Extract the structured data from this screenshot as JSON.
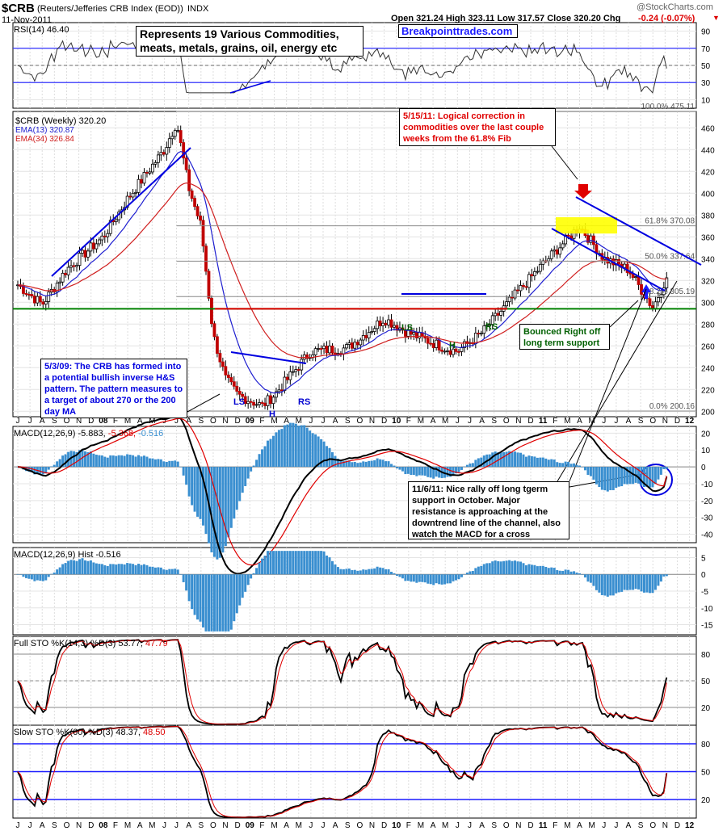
{
  "header": {
    "symbol": "$CRB",
    "name": "(Reuters/Jefferies CRB Index (EOD))",
    "exchange": "INDX",
    "date": "11-Nov-2011",
    "ohlc": "Open 321.24  High 323.11  Low 317.57  Close 320.20  Chg",
    "chg": "-0.24 (-0.07%)",
    "chg_icon": "down-triangle-icon",
    "logo": "@StockCharts.com"
  },
  "colors": {
    "ema13": "#1f1fd0",
    "ema34": "#d01f1f",
    "support": "#008000",
    "neckline": "#e00000",
    "channel": "#0000e0",
    "fib_box": "#ffff00",
    "circle": "#0000e0",
    "hist": "#3a8fd0"
  },
  "notes": {
    "commodities": "Represents 19 Various Commodities, meats, metals, grains, oil, energy etc",
    "site": "Breakpointtrades.com",
    "fib_note": "5/15/11: Logical correction in commodities over the last couple weeks from the 61.8% Fib",
    "support_note": "Bounced Right off long term support",
    "hs_note": "5/3/09: The CRB has formed into a potential bullish inverse H&S pattern.  The pattern measures to a target of about 270 or the 200 day MA",
    "macd_note": "11/6/11: Nice rally off long tgerm support in October.  Major resistance is approaching at the downtrend line of the channel, also watch the MACD for a cross"
  },
  "pattern_labels": {
    "ls1": "LS",
    "h1": "H",
    "rs1": "RS",
    "ls2": "LS",
    "h2": "H",
    "rs2": "RS"
  },
  "panels": {
    "rsi": {
      "label": "RSI(14) 46.40",
      "ticks": [
        "90",
        "70",
        "50",
        "30",
        "10"
      ]
    },
    "price": {
      "label": "$CRB (Weekly) 320.20",
      "ema13": "EMA(13) 320.87",
      "ema34": "EMA(34) 326.84",
      "ticks": [
        "460",
        "440",
        "420",
        "400",
        "380",
        "360",
        "340",
        "320",
        "300",
        "280",
        "260",
        "240",
        "220",
        "200"
      ],
      "fib": {
        "f100": "100.0% 475.11",
        "f618": "61.8% 370.08",
        "f50": "50.0% 337.64",
        "f382": "38.2% 305.19",
        "f0": "0.0% 200.16"
      }
    },
    "macd": {
      "label": "MACD(12,26,9) -5.883,",
      "v2": "-5.368,",
      "v3": "-0.516",
      "ticks": [
        "20",
        "10",
        "0",
        "-10",
        "-20",
        "-30",
        "-40"
      ]
    },
    "hist": {
      "label": "MACD(12,26,9) Hist -0.516",
      "ticks": [
        "5",
        "0",
        "-5",
        "-10",
        "-15"
      ]
    },
    "fsto": {
      "label": "Full STO %K(14,3) %D(3) 53.77,",
      "v2": "47.79",
      "ticks": [
        "80",
        "50",
        "20"
      ]
    },
    "ssto": {
      "label": "Slow STO %K(60) %D(3) 48.37,",
      "v2": "48.50",
      "ticks": [
        "80",
        "50",
        "20"
      ]
    }
  },
  "x_axis": [
    "J",
    "J",
    "A",
    "S",
    "O",
    "N",
    "D",
    "08",
    "F",
    "M",
    "A",
    "M",
    "J",
    "J",
    "A",
    "S",
    "O",
    "N",
    "D",
    "09",
    "F",
    "M",
    "A",
    "M",
    "J",
    "J",
    "A",
    "S",
    "O",
    "N",
    "D",
    "10",
    "F",
    "M",
    "A",
    "M",
    "J",
    "J",
    "A",
    "S",
    "O",
    "N",
    "D",
    "11",
    "F",
    "M",
    "A",
    "M",
    "J",
    "J",
    "A",
    "S",
    "O",
    "N",
    "D",
    "12"
  ],
  "chart_data": {
    "type": "line",
    "title": "$CRB (Weekly)",
    "x_range": [
      "Jun 2007",
      "Nov 2011"
    ],
    "ylim": [
      195,
      470
    ],
    "price_keypoints": [
      {
        "date": "2007-06",
        "y": 316
      },
      {
        "date": "2007-08",
        "y": 298
      },
      {
        "date": "2007-10",
        "y": 330
      },
      {
        "date": "2008-01",
        "y": 360
      },
      {
        "date": "2008-03",
        "y": 395
      },
      {
        "date": "2008-06",
        "y": 440
      },
      {
        "date": "2008-07",
        "y": 465
      },
      {
        "date": "2008-08",
        "y": 405
      },
      {
        "date": "2008-09",
        "y": 370
      },
      {
        "date": "2008-10",
        "y": 270
      },
      {
        "date": "2008-11",
        "y": 230
      },
      {
        "date": "2008-12",
        "y": 215
      },
      {
        "date": "2009-02",
        "y": 205
      },
      {
        "date": "2009-03",
        "y": 215
      },
      {
        "date": "2009-06",
        "y": 255
      },
      {
        "date": "2009-09",
        "y": 258
      },
      {
        "date": "2009-12",
        "y": 285
      },
      {
        "date": "2010-02",
        "y": 272
      },
      {
        "date": "2010-05",
        "y": 258
      },
      {
        "date": "2010-06",
        "y": 255
      },
      {
        "date": "2010-08",
        "y": 272
      },
      {
        "date": "2010-11",
        "y": 310
      },
      {
        "date": "2011-01",
        "y": 335
      },
      {
        "date": "2011-04",
        "y": 370
      },
      {
        "date": "2011-06",
        "y": 340
      },
      {
        "date": "2011-08",
        "y": 330
      },
      {
        "date": "2011-10",
        "y": 295
      },
      {
        "date": "2011-11",
        "y": 320
      }
    ],
    "fib_levels": [
      475.11,
      370.08,
      337.64,
      305.19,
      200.16
    ],
    "support": 294,
    "neckline": 294,
    "rsi_last": 46.4,
    "macd_last": [
      -5.883,
      -5.368,
      -0.516
    ],
    "stoch_full_last": [
      53.77,
      47.79
    ],
    "stoch_slow_last": [
      48.37,
      48.5
    ]
  }
}
